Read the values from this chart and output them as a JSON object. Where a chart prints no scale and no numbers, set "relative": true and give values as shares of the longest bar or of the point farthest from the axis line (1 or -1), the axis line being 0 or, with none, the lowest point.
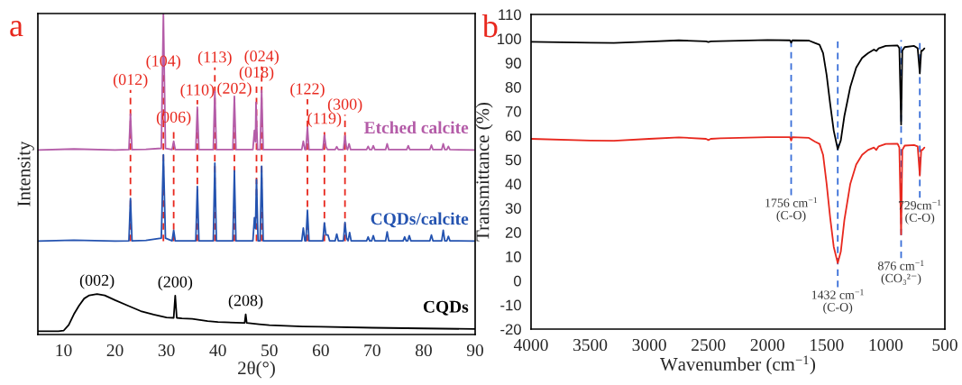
{
  "chart_data": [
    {
      "type": "line",
      "title": "a",
      "xlabel": "2θ(°)",
      "ylabel": "Intensity",
      "relative": true,
      "tick_labels": "x",
      "legend": false,
      "grid": false,
      "marker": "none",
      "line_style": "solid",
      "xlim": [
        5,
        90
      ],
      "xticks": [
        10,
        20,
        30,
        40,
        50,
        60,
        70,
        80,
        90
      ],
      "series": [
        {
          "name": "Etched calcite",
          "color": "#b45ca8",
          "x": [
            5,
            12,
            20,
            22.7,
            23.0,
            23.3,
            26,
            29.0,
            29.4,
            29.8,
            31.1,
            31.4,
            31.7,
            35.7,
            36.0,
            36.3,
            39.1,
            39.4,
            39.7,
            42.9,
            43.2,
            43.5,
            46.8,
            47.1,
            47.3,
            47.4,
            47.7,
            48.2,
            48.5,
            48.8,
            56.3,
            56.6,
            56.9,
            57.1,
            57.4,
            57.7,
            60.4,
            60.7,
            61.0,
            61.3,
            62.8,
            63.1,
            63.4,
            64.4,
            64.7,
            65.0,
            65.2,
            65.5,
            65.8,
            68.9,
            69.2,
            69.5,
            69.9,
            70.2,
            70.5,
            72.6,
            72.9,
            73.2,
            76.7,
            77.0,
            77.3,
            81.2,
            81.5,
            81.8,
            83.5,
            83.8,
            84.1,
            84.5,
            84.8,
            85.1,
            90
          ],
          "values": [
            0.575,
            0.578,
            0.575,
            0.576,
            0.687,
            0.576,
            0.577,
            0.58,
            1.0,
            0.58,
            0.576,
            0.602,
            0.576,
            0.576,
            0.708,
            0.576,
            0.576,
            0.757,
            0.576,
            0.576,
            0.742,
            0.576,
            0.576,
            0.636,
            0.6,
            0.723,
            0.576,
            0.576,
            0.76,
            0.576,
            0.576,
            0.602,
            0.576,
            0.576,
            0.646,
            0.576,
            0.576,
            0.621,
            0.585,
            0.576,
            0.576,
            0.585,
            0.576,
            0.576,
            0.619,
            0.58,
            0.576,
            0.594,
            0.576,
            0.576,
            0.586,
            0.576,
            0.576,
            0.588,
            0.576,
            0.576,
            0.594,
            0.576,
            0.576,
            0.588,
            0.576,
            0.576,
            0.59,
            0.576,
            0.576,
            0.594,
            0.576,
            0.576,
            0.586,
            0.576,
            0.575
          ]
        },
        {
          "name": "CQDs/calcite",
          "color": "#2453b0",
          "x": [
            5,
            12,
            20,
            22.7,
            23.0,
            23.3,
            26,
            29.0,
            29.4,
            29.8,
            31.1,
            31.4,
            31.7,
            35.7,
            36.0,
            36.3,
            39.1,
            39.4,
            39.7,
            42.9,
            43.2,
            43.5,
            46.8,
            47.1,
            47.3,
            47.5,
            47.8,
            48.2,
            48.5,
            48.8,
            56.3,
            56.6,
            56.9,
            57.1,
            57.4,
            57.7,
            60.4,
            60.7,
            61.0,
            61.4,
            61.7,
            62.8,
            63.1,
            63.4,
            64.4,
            64.7,
            65.0,
            65.3,
            65.6,
            65.9,
            68.9,
            69.2,
            69.5,
            69.9,
            70.2,
            70.5,
            72.6,
            72.9,
            73.2,
            76.0,
            76.3,
            76.6,
            76.9,
            77.2,
            77.5,
            81.2,
            81.5,
            81.8,
            83.5,
            83.8,
            84.1,
            84.5,
            84.8,
            85.1,
            90
          ],
          "values": [
            0.291,
            0.294,
            0.291,
            0.292,
            0.424,
            0.292,
            0.293,
            0.3,
            0.56,
            0.3,
            0.292,
            0.325,
            0.292,
            0.292,
            0.461,
            0.292,
            0.292,
            0.534,
            0.292,
            0.292,
            0.51,
            0.292,
            0.292,
            0.364,
            0.33,
            0.483,
            0.292,
            0.292,
            0.524,
            0.292,
            0.292,
            0.332,
            0.292,
            0.292,
            0.387,
            0.292,
            0.292,
            0.348,
            0.31,
            0.31,
            0.292,
            0.292,
            0.313,
            0.292,
            0.292,
            0.349,
            0.3,
            0.292,
            0.318,
            0.292,
            0.292,
            0.304,
            0.292,
            0.292,
            0.308,
            0.292,
            0.292,
            0.32,
            0.292,
            0.292,
            0.304,
            0.292,
            0.292,
            0.308,
            0.292,
            0.292,
            0.31,
            0.292,
            0.292,
            0.325,
            0.292,
            0.292,
            0.306,
            0.292,
            0.291
          ]
        },
        {
          "name": "CQDs",
          "color": "#000000",
          "x": [
            5,
            9,
            10,
            11,
            12,
            13,
            14,
            15,
            16.5,
            18,
            20,
            22.5,
            25,
            27.5,
            30,
            31.4,
            31.7,
            32.0,
            33,
            35,
            38,
            40,
            45,
            45.2,
            45.4,
            45.6,
            48,
            50,
            56.5,
            60,
            70,
            80,
            90
          ],
          "values": [
            0.01,
            0.01,
            0.012,
            0.03,
            0.063,
            0.09,
            0.112,
            0.122,
            0.126,
            0.122,
            0.107,
            0.09,
            0.073,
            0.062,
            0.053,
            0.052,
            0.121,
            0.052,
            0.05,
            0.049,
            0.042,
            0.039,
            0.036,
            0.036,
            0.063,
            0.036,
            0.032,
            0.029,
            0.025,
            0.024,
            0.021,
            0.019,
            0.017
          ]
        }
      ],
      "ref_lines": [
        {
          "axis": "x",
          "value": 23.0,
          "color": "#e8281e",
          "line_style": "dashed"
        },
        {
          "axis": "x",
          "value": 29.4,
          "color": "#e8281e",
          "line_style": "dashed"
        },
        {
          "axis": "x",
          "value": 31.4,
          "color": "#e8281e",
          "line_style": "dashed"
        },
        {
          "axis": "x",
          "value": 36.0,
          "color": "#e8281e",
          "line_style": "dashed"
        },
        {
          "axis": "x",
          "value": 39.4,
          "color": "#e8281e",
          "line_style": "dashed"
        },
        {
          "axis": "x",
          "value": 43.2,
          "color": "#e8281e",
          "line_style": "dashed"
        },
        {
          "axis": "x",
          "value": 47.5,
          "color": "#e8281e",
          "line_style": "dashed"
        },
        {
          "axis": "x",
          "value": 48.5,
          "color": "#e8281e",
          "line_style": "dashed"
        },
        {
          "axis": "x",
          "value": 57.4,
          "color": "#e8281e",
          "line_style": "dashed"
        },
        {
          "axis": "x",
          "value": 60.7,
          "color": "#e8281e",
          "line_style": "dashed"
        },
        {
          "axis": "x",
          "value": 64.7,
          "color": "#e8281e",
          "line_style": "dashed"
        }
      ],
      "annotations": [
        {
          "text": "(012)",
          "x": 23.0,
          "y": 0.767
        },
        {
          "text": "(104)",
          "x": 29.4,
          "y": 0.825
        },
        {
          "text": "(006)",
          "x": 31.4,
          "y": 0.65
        },
        {
          "text": "(110)",
          "x": 36.0,
          "y": 0.735
        },
        {
          "text": "(113)",
          "x": 39.4,
          "y": 0.837
        },
        {
          "text": "(202)",
          "x": 43.2,
          "y": 0.74
        },
        {
          "text": "(018)",
          "x": 47.5,
          "y": 0.79
        },
        {
          "text": "(024)",
          "x": 48.5,
          "y": 0.84
        },
        {
          "text": "(122)",
          "x": 57.4,
          "y": 0.738
        },
        {
          "text": "(119)",
          "x": 60.7,
          "y": 0.646
        },
        {
          "text": "(300)",
          "x": 64.7,
          "y": 0.69
        },
        {
          "text": "(002)",
          "x": 16.5,
          "y": 0.126
        },
        {
          "text": "(200)",
          "x": 31.7,
          "y": 0.121
        },
        {
          "text": "(208)",
          "x": 45.4,
          "y": 0.063
        }
      ]
    },
    {
      "type": "line",
      "title": "b",
      "xlabel": "Wavenumber (cm$^{−1}$)",
      "ylabel": "Transmittance (%)",
      "legend": false,
      "grid": false,
      "marker": "none",
      "line_style": "solid",
      "xlim": [
        4000,
        500
      ],
      "xticks": [
        4000,
        3500,
        3000,
        2500,
        2000,
        1500,
        1000,
        500
      ],
      "ylim": [
        -20,
        110
      ],
      "yticks": [
        -20,
        -10,
        0,
        10,
        20,
        30,
        40,
        50,
        60,
        70,
        80,
        90,
        100,
        110
      ],
      "series": [
        {
          "color": "#000000",
          "x": [
            4000,
            3500,
            3300,
            3000,
            2750,
            2520,
            2500,
            2480,
            2400,
            2000,
            1810,
            1800,
            1790,
            1650,
            1600,
            1560,
            1530,
            1500,
            1470,
            1440,
            1406,
            1380,
            1350,
            1300,
            1250,
            1200,
            1150,
            1100,
            1080,
            1060,
            1000,
            900,
            885,
            870,
            860,
            840,
            760,
            730,
            712,
            700,
            690,
            673
          ],
          "values": [
            98.7,
            98.3,
            98.2,
            98.8,
            99.3,
            98.9,
            98.6,
            98.9,
            99.0,
            99.4,
            99.3,
            98.3,
            99.3,
            99.2,
            98.2,
            97.5,
            94,
            85,
            73,
            62,
            54.3,
            58,
            68,
            80,
            88,
            92,
            94,
            95.5,
            94.9,
            96,
            97,
            97.2,
            96,
            64.5,
            95,
            96.5,
            97,
            96,
            85.6,
            95,
            95,
            96
          ]
        },
        {
          "color": "#e8281e",
          "x": [
            4000,
            3500,
            3300,
            3000,
            2750,
            2520,
            2500,
            2480,
            2400,
            2000,
            1810,
            1800,
            1790,
            1650,
            1600,
            1560,
            1530,
            1500,
            1470,
            1440,
            1406,
            1380,
            1350,
            1300,
            1250,
            1200,
            1150,
            1100,
            1080,
            1060,
            1000,
            900,
            885,
            870,
            860,
            840,
            760,
            730,
            712,
            700,
            690,
            673
          ],
          "values": [
            58.6,
            57.9,
            57.8,
            58.6,
            59.2,
            58.6,
            58.1,
            58.6,
            58.8,
            59.3,
            59.3,
            57.9,
            59.3,
            59.0,
            57.5,
            56.5,
            52,
            40,
            26,
            14,
            7.3,
            12,
            25,
            40,
            48,
            52,
            54,
            55,
            54,
            55.5,
            56.5,
            56.6,
            55,
            19.1,
            54,
            55.8,
            56,
            55.5,
            43.4,
            54,
            54,
            55
          ]
        }
      ],
      "ref_lines": [
        {
          "axis": "x",
          "value": 1800,
          "color": "#3a6fd8",
          "line_style": "dashed"
        },
        {
          "axis": "x",
          "value": 1406,
          "color": "#3a6fd8",
          "line_style": "dashed"
        },
        {
          "axis": "x",
          "value": 870,
          "color": "#3a6fd8",
          "line_style": "dashed"
        },
        {
          "axis": "x",
          "value": 712,
          "color": "#3a6fd8",
          "line_style": "dashed"
        }
      ],
      "annotations": [
        {
          "text": "1756 cm$^{−1}$\n(C-O)",
          "x": 1800,
          "y": 34
        },
        {
          "text": "1432 cm$^{−1}$\n(C-O)",
          "x": 1406,
          "y": -4
        },
        {
          "text": "876 cm$^{−1}$\n(CO₃²⁻)",
          "x": 870,
          "y": 8
        },
        {
          "text": "729cm$^{−1}$\n(C-O)",
          "x": 712,
          "y": 33
        }
      ]
    }
  ]
}
